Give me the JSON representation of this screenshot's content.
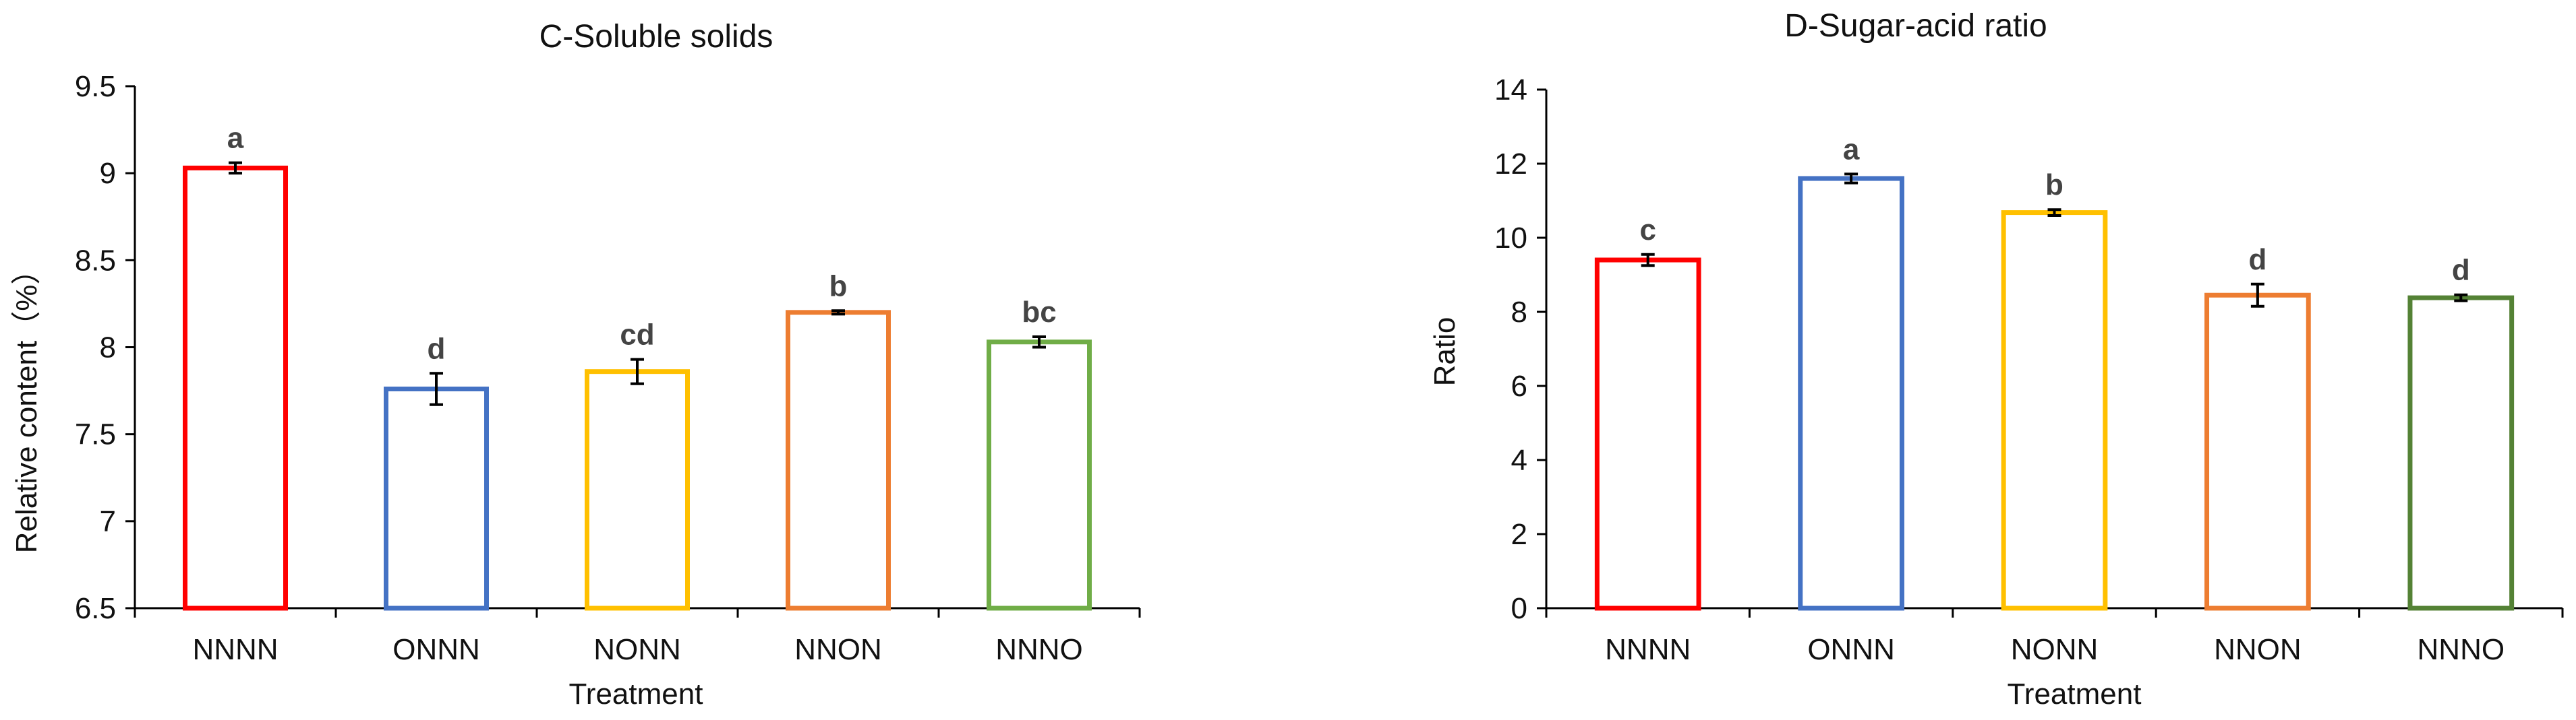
{
  "chart_data": [
    {
      "type": "bar",
      "title": "C-Soluble solids",
      "xlabel": "Treatment",
      "ylabel": "Relative content（%）",
      "categories": [
        "NNNN",
        "ONNN",
        "NONN",
        "NNON",
        "NNNO"
      ],
      "values": [
        9.03,
        7.76,
        7.86,
        8.2,
        8.03
      ],
      "errors": [
        0.03,
        0.09,
        0.07,
        0.01,
        0.03
      ],
      "significance": [
        "a",
        "d",
        "cd",
        "b",
        "bc"
      ],
      "colors": [
        "#FF0000",
        "#4472C4",
        "#FFC000",
        "#ED7D31",
        "#70AD47"
      ],
      "ylim": [
        6.5,
        9.5
      ],
      "yticks": [
        "6.5",
        "7",
        "7.5",
        "8",
        "8.5",
        "9",
        "9.5"
      ],
      "grid": false
    },
    {
      "type": "bar",
      "title": "D-Sugar-acid ratio",
      "xlabel": "Treatment",
      "ylabel": "Ratio",
      "categories": [
        "NNNN",
        "ONNN",
        "NONN",
        "NNON",
        "NNNO"
      ],
      "values": [
        9.4,
        11.6,
        10.68,
        8.45,
        8.38
      ],
      "errors": [
        0.15,
        0.12,
        0.08,
        0.3,
        0.08
      ],
      "significance": [
        "c",
        "a",
        "b",
        "d",
        "d"
      ],
      "colors": [
        "#FF0000",
        "#4472C4",
        "#FFC000",
        "#ED7D31",
        "#548235"
      ],
      "ylim": [
        0,
        14
      ],
      "yticks": [
        "0",
        "2",
        "4",
        "6",
        "8",
        "10",
        "12",
        "14"
      ],
      "grid": false
    }
  ]
}
